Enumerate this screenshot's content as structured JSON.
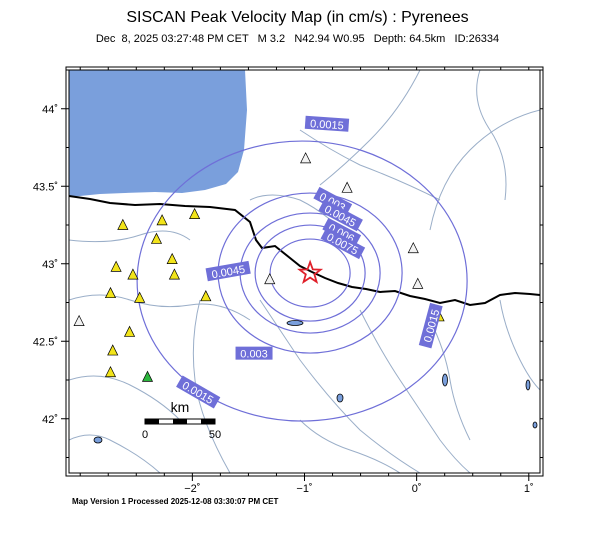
{
  "header": {
    "title": "SISCAN Peak Velocity Map (in cm/s) : Pyrenees",
    "subtitle": "Dec  8, 2025 03:27:48 PM CET   M 3.2   N42.94 W0.95   Depth: 64.5km   ID:26334"
  },
  "footer": {
    "text": "Map Version 1 Processed 2025-12-08 03:30:07 PM CET"
  },
  "map": {
    "lon_range": [
      -3.1,
      1.1
    ],
    "lat_range": [
      41.65,
      44.25
    ],
    "lon_ticks": [
      {
        "value": -2,
        "label": "−2˚"
      },
      {
        "value": -1,
        "label": "−1˚"
      },
      {
        "value": 0,
        "label": "0˚"
      },
      {
        "value": 1,
        "label": "1˚"
      }
    ],
    "lat_ticks": [
      {
        "value": 44,
        "label": "44˚"
      },
      {
        "value": 43.5,
        "label": "43.5˚"
      },
      {
        "value": 43,
        "label": "43˚"
      },
      {
        "value": 42.5,
        "label": "42.5˚"
      },
      {
        "value": 42,
        "label": "42˚"
      }
    ],
    "sea_color": "#7a9fdc",
    "border_color": "#000000",
    "river_color": "#9aaec8",
    "contour_color": "#6f6fd8",
    "label_bg": "#6f6fd8",
    "epicenter": {
      "lon": -0.95,
      "lat": 42.94,
      "symbol": "star-icon",
      "color": "#e0202a"
    },
    "contour_labels": [
      {
        "text": "0.0015",
        "lon": -0.8,
        "lat": 43.9,
        "rotate": 4
      },
      {
        "text": "0.003",
        "lon": -0.75,
        "lat": 43.4,
        "rotate": 28
      },
      {
        "text": "0.0045",
        "lon": -0.68,
        "lat": 43.31,
        "rotate": 28
      },
      {
        "text": "0.006",
        "lon": -0.67,
        "lat": 43.2,
        "rotate": 28
      },
      {
        "text": "0.0075",
        "lon": -0.66,
        "lat": 43.13,
        "rotate": 28
      },
      {
        "text": "0.0045",
        "lon": -1.68,
        "lat": 42.95,
        "rotate": -10
      },
      {
        "text": "0.003",
        "lon": -1.45,
        "lat": 42.42,
        "rotate": 0
      },
      {
        "text": "0.0015",
        "lon": -1.95,
        "lat": 42.17,
        "rotate": 30
      },
      {
        "text": "0.0015",
        "lon": 0.13,
        "lat": 42.6,
        "rotate": -75
      }
    ],
    "stations": [
      {
        "lon": -2.62,
        "lat": 43.25,
        "color": "#f2e41a"
      },
      {
        "lon": -2.27,
        "lat": 43.28,
        "color": "#f2e41a"
      },
      {
        "lon": -1.98,
        "lat": 43.32,
        "color": "#f2e41a"
      },
      {
        "lon": -2.32,
        "lat": 43.16,
        "color": "#f2e41a"
      },
      {
        "lon": -2.18,
        "lat": 43.03,
        "color": "#f2e41a"
      },
      {
        "lon": -2.68,
        "lat": 42.98,
        "color": "#f2e41a"
      },
      {
        "lon": -2.53,
        "lat": 42.93,
        "color": "#f2e41a"
      },
      {
        "lon": -2.16,
        "lat": 42.93,
        "color": "#f2e41a"
      },
      {
        "lon": -2.73,
        "lat": 42.81,
        "color": "#f2e41a"
      },
      {
        "lon": -2.47,
        "lat": 42.78,
        "color": "#f2e41a"
      },
      {
        "lon": -1.88,
        "lat": 42.79,
        "color": "#f2e41a"
      },
      {
        "lon": -2.56,
        "lat": 42.56,
        "color": "#f2e41a"
      },
      {
        "lon": -2.71,
        "lat": 42.44,
        "color": "#f2e41a"
      },
      {
        "lon": -2.73,
        "lat": 42.3,
        "color": "#f2e41a"
      },
      {
        "lon": -2.4,
        "lat": 42.27,
        "color": "#2bb63c"
      },
      {
        "lon": -3.01,
        "lat": 42.63,
        "color": "#f2f2f2"
      },
      {
        "lon": -0.99,
        "lat": 43.68,
        "color": "#f2f2f2"
      },
      {
        "lon": -0.62,
        "lat": 43.49,
        "color": "#f2f2f2"
      },
      {
        "lon": -0.03,
        "lat": 43.1,
        "color": "#f2f2f2"
      },
      {
        "lon": 0.01,
        "lat": 42.87,
        "color": "#f2f2f2"
      },
      {
        "lon": -1.31,
        "lat": 42.9,
        "color": "#f2f2f2"
      },
      {
        "lon": 0.2,
        "lat": 42.66,
        "color": "#f2e41a"
      }
    ],
    "scale_bar": {
      "title": "km",
      "labels": [
        "0",
        "50"
      ]
    }
  }
}
